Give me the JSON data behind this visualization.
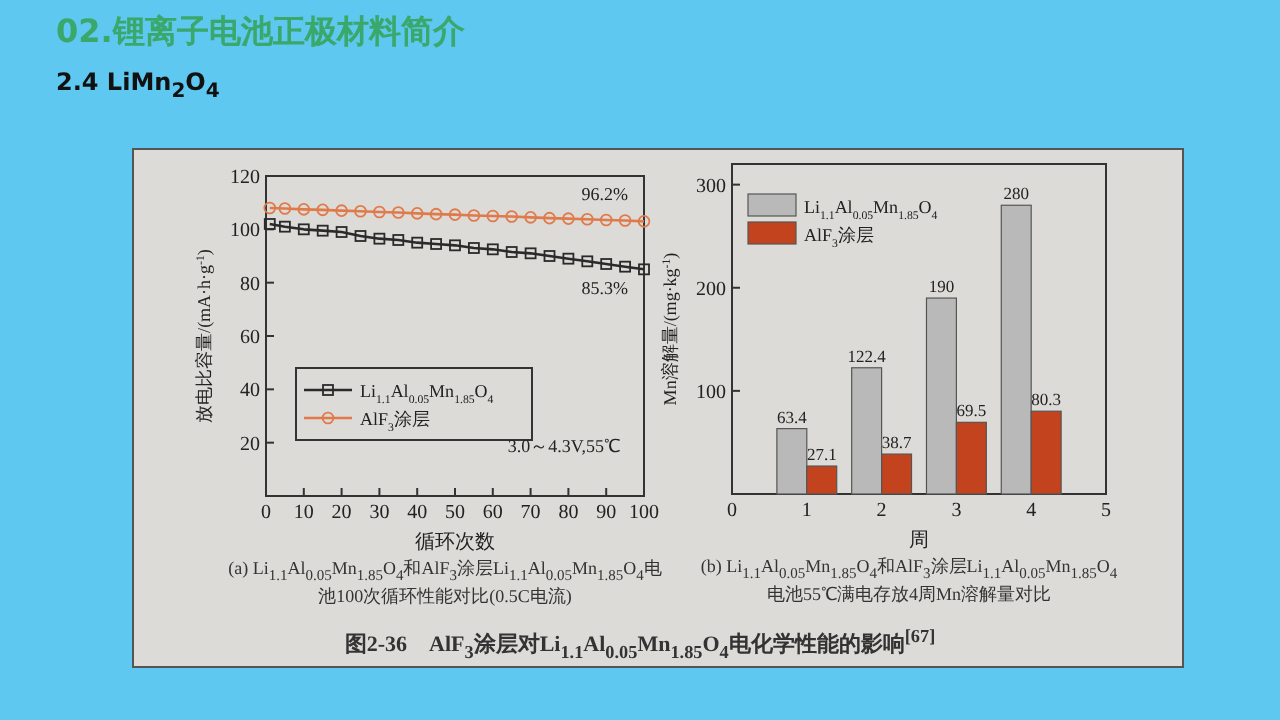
{
  "chart_data": [
    {
      "type": "line",
      "title": "02.锂离子电池正极材料简介",
      "subtitle": "2.4 LiMn$_{2}$O$_{4}$",
      "xlabel": "循环次数",
      "ylabel": "放电比容量/(mA·h·g$^{-1}$)",
      "x": [
        1,
        5,
        10,
        15,
        20,
        25,
        30,
        35,
        40,
        45,
        50,
        55,
        60,
        65,
        70,
        75,
        80,
        85,
        90,
        95,
        100
      ],
      "series": [
        {
          "name": "Li$_{1.1}$Al$_{0.05}$Mn$_{1.85}$O$_{4}$",
          "color": "#2a2a2a",
          "marker": "square",
          "values": [
            102,
            101,
            100,
            99.5,
            99,
            97.5,
            96.5,
            96,
            95,
            94.5,
            94,
            93,
            92.5,
            91.5,
            91,
            90,
            89,
            88,
            87,
            86,
            85
          ]
        },
        {
          "name": "AlF$_{3}$涂层",
          "color": "#e07a4a",
          "marker": "circle",
          "values": [
            108,
            107.8,
            107.5,
            107.3,
            107,
            106.8,
            106.5,
            106.3,
            106,
            105.7,
            105.5,
            105.2,
            105,
            104.8,
            104.5,
            104.2,
            104,
            103.8,
            103.5,
            103.3,
            103
          ]
        }
      ],
      "xlim": [
        0,
        100
      ],
      "xticks": [
        0,
        10,
        20,
        30,
        40,
        50,
        60,
        70,
        80,
        90,
        100
      ],
      "ylim": [
        0,
        120
      ],
      "yticks": [
        20,
        40,
        60,
        80,
        100,
        120
      ],
      "legend": "left",
      "grid": false,
      "annotations": [
        "96.2%",
        "85.3%",
        "3.0～4.3V,55℃",
        "(a) Li$_{1.1}$Al$_{0.05}$Mn$_{1.85}$O$_{4}$和AlF$_{3}$涂层Li$_{1.1}$Al$_{0.05}$Mn$_{1.85}$O$_{4}$电池100次循环性能对比(0.5C电流)"
      ]
    },
    {
      "type": "bar",
      "xlabel": "周",
      "ylabel": "Mn溶解量/(mg·kg$^{-1}$)",
      "x": [
        1,
        2,
        3,
        4
      ],
      "series": [
        {
          "name": "Li$_{1.1}$Al$_{0.05}$Mn$_{1.85}$O$_{4}$",
          "color": "#b9b9b9",
          "values": [
            63.4,
            122.4,
            190,
            280
          ]
        },
        {
          "name": "AlF$_{3}$涂层",
          "color": "#c2431e",
          "values": [
            27.1,
            38.7,
            69.5,
            80.3
          ]
        }
      ],
      "xlim": [
        0,
        5
      ],
      "xticks": [
        0,
        1,
        2,
        3,
        4,
        5
      ],
      "ylim": [
        0,
        320
      ],
      "yticks": [
        100,
        200,
        300
      ],
      "legend": "top left",
      "grid": false,
      "data_labels": true,
      "annotations": [
        "(b) Li$_{1.1}$Al$_{0.05}$Mn$_{1.85}$O$_{4}$和AlF$_{3}$涂层Li$_{1.1}$Al$_{0.05}$Mn$_{1.85}$O$_{4}$电池55℃满电存放4周Mn溶解量对比",
        "图2-36　AlF$_{3}$涂层对Li$_{1.1}$Al$_{0.05}$Mn$_{1.85}$O$_{4}$电化学性能的影响$^{[67]}$"
      ]
    }
  ]
}
